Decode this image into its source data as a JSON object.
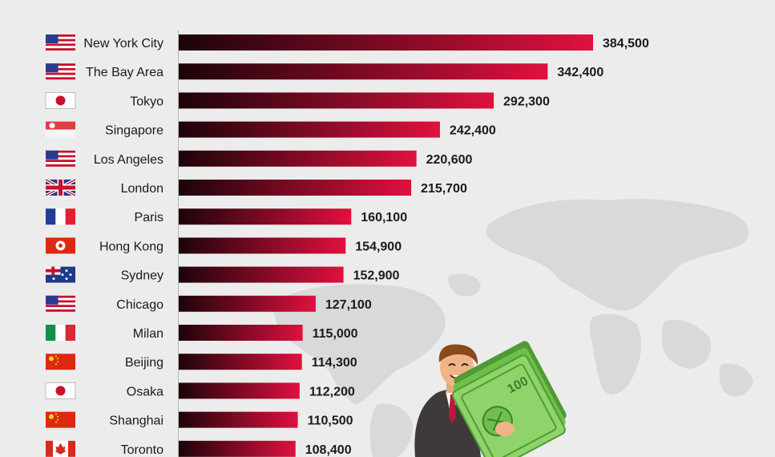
{
  "chart_data": {
    "type": "bar",
    "orientation": "horizontal",
    "categories": [
      "New York City",
      "The Bay Area",
      "Tokyo",
      "Singapore",
      "Los Angeles",
      "London",
      "Paris",
      "Hong Kong",
      "Sydney",
      "Chicago",
      "Milan",
      "Beijing",
      "Osaka",
      "Shanghai",
      "Toronto"
    ],
    "value_labels": [
      "384,500",
      "342,400",
      "292,300",
      "242,400",
      "220,600",
      "215,700",
      "160,100",
      "154,900",
      "152,900",
      "127,100",
      "115,000",
      "114,300",
      "112,200",
      "110,500",
      "108,400"
    ],
    "values": [
      384500,
      342400,
      292300,
      242400,
      220600,
      215700,
      160100,
      154900,
      152900,
      127100,
      115000,
      114300,
      112200,
      110500,
      108400
    ],
    "flags": [
      "us-flag-icon",
      "us-flag-icon",
      "japan-flag-icon",
      "singapore-flag-icon",
      "us-flag-icon",
      "uk-flag-icon",
      "france-flag-icon",
      "hong-kong-flag-icon",
      "australia-flag-icon",
      "us-flag-icon",
      "italy-flag-icon",
      "china-flag-icon",
      "japan-flag-icon",
      "china-flag-icon",
      "canada-flag-icon"
    ],
    "xlim": [
      0,
      384500
    ],
    "grid": false,
    "colors": {
      "bar_start": "#1c0409",
      "bar_end": "#e0103f",
      "background": "#ececec",
      "map": "#d9d9d9"
    }
  }
}
